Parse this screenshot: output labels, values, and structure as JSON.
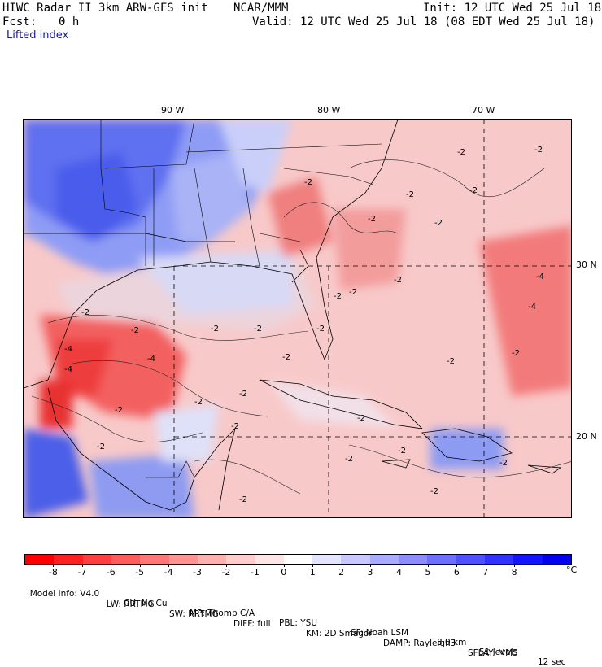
{
  "header": {
    "title": "HIWC Radar II 3km ARW-GFS init",
    "center": "NCAR/MMM",
    "init": "Init: 12 UTC Wed 25 Jul 18",
    "fcst_label": "Fcst:",
    "fcst_value": "0 h",
    "valid": "Valid: 12 UTC Wed 25 Jul 18 (08 EDT Wed 25 Jul 18)",
    "field": "Lifted index"
  },
  "map": {
    "lon_labels": [
      "90 W",
      "80 W",
      "70 W"
    ],
    "lat_labels": [
      "30 N",
      "20 N"
    ],
    "contour_labels": [
      "-2",
      "-2",
      "-2",
      "-2",
      "-2",
      "-2",
      "-2",
      "-2",
      "-4",
      "-4",
      "-4",
      "-4",
      "-2",
      "-2",
      "-2",
      "-2",
      "-2",
      "-2",
      "-2",
      "-2",
      "-2",
      "-2",
      "-2",
      "-2",
      "-4",
      "-2",
      "-2",
      "-2",
      "-2",
      "-2",
      "-2",
      "-2",
      "-2",
      "-2"
    ]
  },
  "colorbar": {
    "labels": [
      "-8",
      "-7",
      "-6",
      "-5",
      "-4",
      "-3",
      "-2",
      "-1",
      "0",
      "1",
      "2",
      "3",
      "4",
      "5",
      "6",
      "7",
      "8"
    ],
    "unit": "°C",
    "colors": [
      "#ff0000",
      "#ff2020",
      "#ff3f3f",
      "#ff5c5c",
      "#ff7777",
      "#ff9393",
      "#ffb0b0",
      "#ffcccc",
      "#ffe6e6",
      "#ffffff",
      "#e4e4ff",
      "#c8c8ff",
      "#aaaaff",
      "#8c8cff",
      "#6e6eff",
      "#5050ff",
      "#3232ff",
      "#1414ff",
      "#0000ee"
    ]
  },
  "footer": {
    "line1": [
      "Model Info: V4.0",
      "CU: No Cu",
      "MP: Thomp C/A",
      "PBL: YSU",
      "SF: Noah LSM",
      "3.0 km",
      "51 levels",
      "12 sec"
    ],
    "line2": [
      "LW: RRTMG",
      "SW: RRTMG",
      "DIFF: full",
      "KM: 2D Smagor",
      "DAMP: Rayleigh3",
      "SFLAY: MM5"
    ]
  }
}
